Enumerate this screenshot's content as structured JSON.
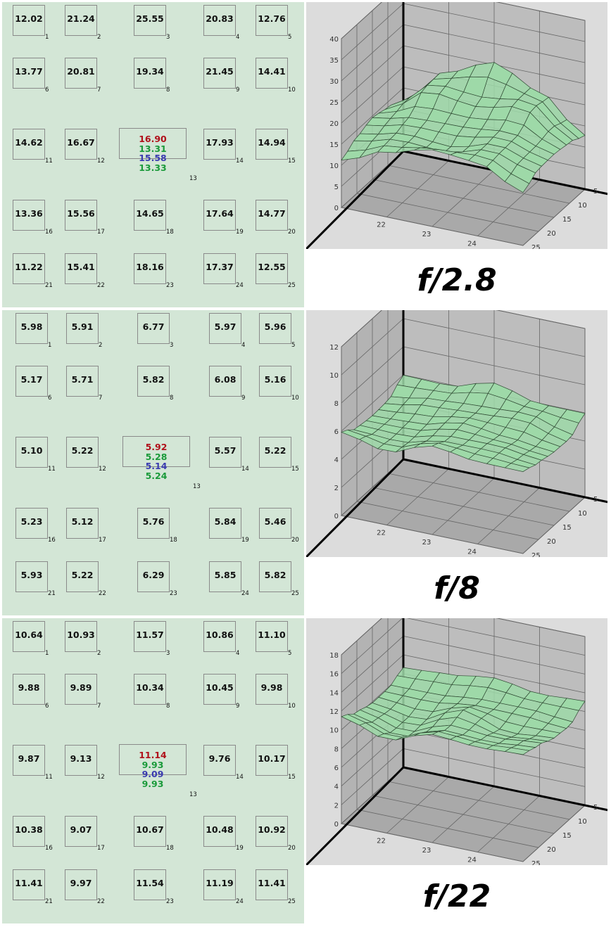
{
  "panels": [
    {
      "label": "f/2.8",
      "cells": [
        "12.02",
        "21.24",
        "25.55",
        "20.83",
        "12.76",
        "13.77",
        "20.81",
        "19.34",
        "21.45",
        "14.41",
        "14.62",
        "16.67",
        "",
        "17.93",
        "14.94",
        "13.36",
        "15.56",
        "14.65",
        "17.64",
        "14.77",
        "11.22",
        "15.41",
        "18.16",
        "17.37",
        "12.55"
      ],
      "center_values": [
        {
          "value": "16.90",
          "color": "#b0101a"
        },
        {
          "value": "13.31",
          "color": "#1a9a3a"
        },
        {
          "value": "15.58",
          "color": "#3a3ab0"
        },
        {
          "value": "13.33",
          "color": "#1a9a3a"
        }
      ]
    },
    {
      "label": "f/8",
      "cells": [
        "5.98",
        "5.91",
        "6.77",
        "5.97",
        "5.96",
        "5.17",
        "5.71",
        "5.82",
        "6.08",
        "5.16",
        "5.10",
        "5.22",
        "",
        "5.57",
        "5.22",
        "5.23",
        "5.12",
        "5.76",
        "5.84",
        "5.46",
        "5.93",
        "5.22",
        "6.29",
        "5.85",
        "5.82"
      ],
      "center_values": [
        {
          "value": "5.92",
          "color": "#b0101a"
        },
        {
          "value": "5.28",
          "color": "#1a9a3a"
        },
        {
          "value": "5.14",
          "color": "#3a3ab0"
        },
        {
          "value": "5.24",
          "color": "#1a9a3a"
        }
      ]
    },
    {
      "label": "f/22",
      "cells": [
        "10.64",
        "10.93",
        "11.57",
        "10.86",
        "11.10",
        "9.88",
        "9.89",
        "10.34",
        "10.45",
        "9.98",
        "9.87",
        "9.13",
        "",
        "9.76",
        "10.17",
        "10.38",
        "9.07",
        "10.67",
        "10.48",
        "10.92",
        "11.41",
        "9.97",
        "11.54",
        "11.19",
        "11.41"
      ],
      "center_values": [
        {
          "value": "11.14",
          "color": "#b0101a"
        },
        {
          "value": "9.93",
          "color": "#1a9a3a"
        },
        {
          "value": "9.09",
          "color": "#3a3ab0"
        },
        {
          "value": "9.93",
          "color": "#1a9a3a"
        }
      ]
    }
  ],
  "cell_indices": [
    "1",
    "2",
    "3",
    "4",
    "5",
    "6",
    "7",
    "8",
    "9",
    "10",
    "11",
    "12",
    "13",
    "14",
    "15",
    "16",
    "17",
    "18",
    "19",
    "20",
    "21",
    "22",
    "23",
    "24",
    "25"
  ],
  "chart_data": [
    {
      "type": "surface",
      "z_ticks": [
        "0",
        "5",
        "10",
        "15",
        "20",
        "25",
        "30",
        "35",
        "40"
      ],
      "zlim": [
        0,
        40
      ],
      "x_ticks": [
        "22",
        "23",
        "24"
      ],
      "y_ticks": [
        "5",
        "10",
        "15",
        "20",
        "25"
      ],
      "grid": true,
      "surface_color": "#9ed9a8",
      "z": [
        [
          12.02,
          21.24,
          25.55,
          20.83,
          12.76
        ],
        [
          13.77,
          20.81,
          19.34,
          21.45,
          14.41
        ],
        [
          14.62,
          16.67,
          16.9,
          17.93,
          14.94
        ],
        [
          13.36,
          15.56,
          14.65,
          17.64,
          14.77
        ],
        [
          11.22,
          15.41,
          18.16,
          17.37,
          12.55
        ]
      ]
    },
    {
      "type": "surface",
      "z_ticks": [
        "0",
        "2",
        "4",
        "6",
        "8",
        "10",
        "12"
      ],
      "zlim": [
        0,
        12
      ],
      "x_ticks": [
        "22",
        "23",
        "24"
      ],
      "y_ticks": [
        "5",
        "10",
        "15",
        "20",
        "25"
      ],
      "grid": true,
      "surface_color": "#9ed9a8",
      "z": [
        [
          5.98,
          5.91,
          6.77,
          5.97,
          5.96
        ],
        [
          5.17,
          5.71,
          5.82,
          6.08,
          5.16
        ],
        [
          5.1,
          5.22,
          5.92,
          5.57,
          5.22
        ],
        [
          5.23,
          5.12,
          5.76,
          5.84,
          5.46
        ],
        [
          5.93,
          5.22,
          6.29,
          5.85,
          5.82
        ]
      ]
    },
    {
      "type": "surface",
      "z_ticks": [
        "0",
        "2",
        "4",
        "6",
        "8",
        "10",
        "12",
        "14",
        "16",
        "18"
      ],
      "zlim": [
        0,
        18
      ],
      "x_ticks": [
        "22",
        "23",
        "24"
      ],
      "y_ticks": [
        "5",
        "10",
        "15",
        "20",
        "25"
      ],
      "grid": true,
      "surface_color": "#9ed9a8",
      "z": [
        [
          10.64,
          10.93,
          11.57,
          10.86,
          11.1
        ],
        [
          9.88,
          9.89,
          10.34,
          10.45,
          9.98
        ],
        [
          9.87,
          9.13,
          11.14,
          9.76,
          10.17
        ],
        [
          10.38,
          9.07,
          10.67,
          10.48,
          10.92
        ],
        [
          11.41,
          9.97,
          11.54,
          11.19,
          11.41
        ]
      ]
    }
  ]
}
